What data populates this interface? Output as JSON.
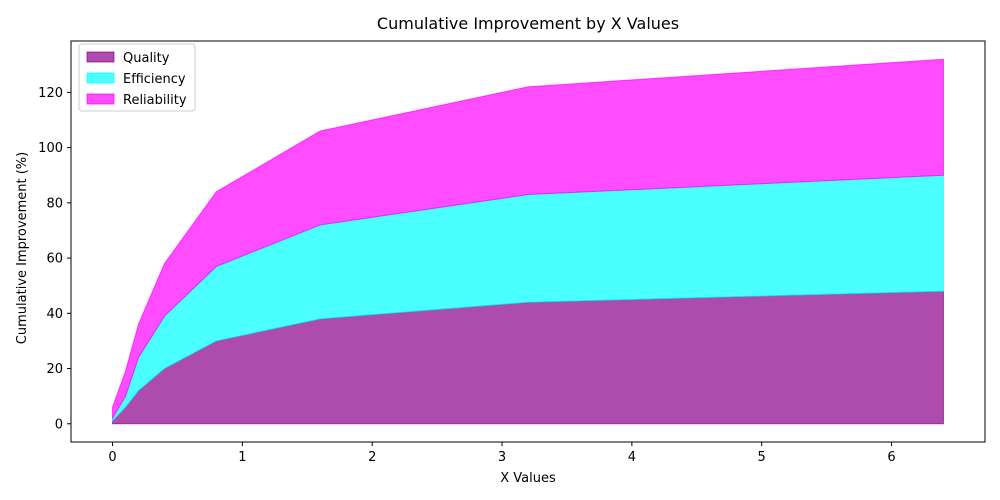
{
  "chart_data": {
    "type": "area",
    "stacked": true,
    "title": "Cumulative Improvement by X Values",
    "xlabel": "X Values",
    "ylabel": "Cumulative Improvement (%)",
    "x": [
      0,
      0.1,
      0.2,
      0.4,
      0.8,
      1.6,
      3.2,
      6.4
    ],
    "xlim": [
      -0.32,
      6.72
    ],
    "ylim": [
      -6.6,
      138.6
    ],
    "xticks": [
      0,
      1,
      2,
      3,
      4,
      5,
      6
    ],
    "yticks": [
      0,
      20,
      40,
      60,
      80,
      100,
      120
    ],
    "grid": false,
    "legend_position": "upper-left",
    "series": [
      {
        "name": "Quality",
        "values": [
          1,
          6,
          12,
          20,
          30,
          38,
          44,
          48
        ],
        "color": "#8b008b",
        "opacity": 0.7
      },
      {
        "name": "Efficiency",
        "values": [
          1,
          4,
          12,
          19,
          27,
          34,
          39,
          42
        ],
        "color": "#00ffff",
        "opacity": 0.7
      },
      {
        "name": "Reliability",
        "values": [
          4,
          9,
          12,
          19,
          27,
          34,
          39,
          42
        ],
        "color": "#ff00ff",
        "opacity": 0.7
      }
    ]
  }
}
